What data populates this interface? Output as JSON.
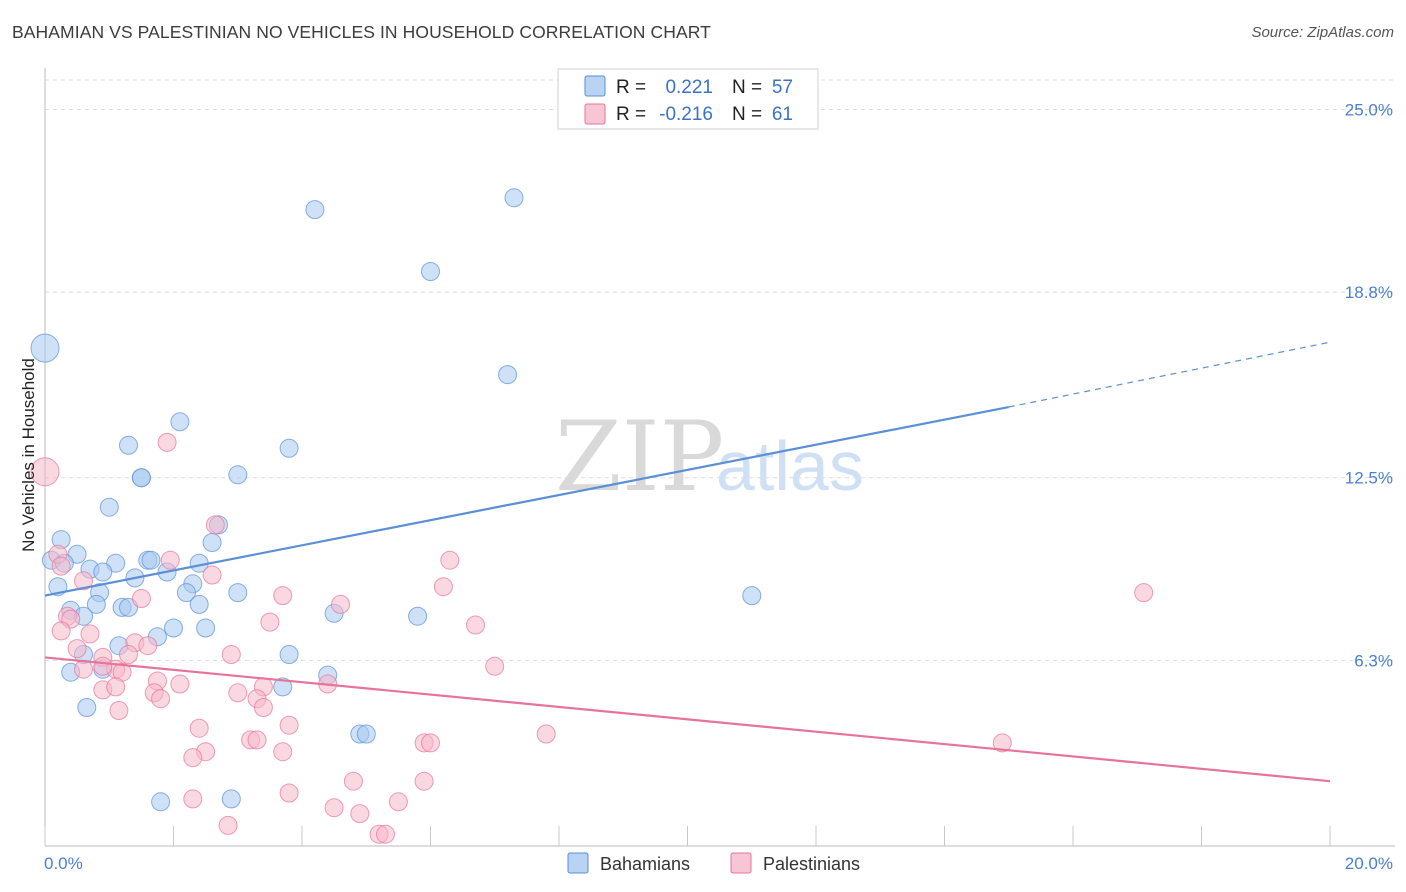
{
  "header": {
    "title": "BAHAMIAN VS PALESTINIAN NO VEHICLES IN HOUSEHOLD CORRELATION CHART",
    "source": "Source: ZipAtlas.com"
  },
  "watermark": {
    "zip": "ZIP",
    "atlas": "atlas"
  },
  "legend": {
    "r_label": "R =",
    "n_label": "N =",
    "rows": [
      {
        "r": "0.221",
        "n": "57",
        "color": "#a8c8f0"
      },
      {
        "r": "-0.216",
        "n": "61",
        "color": "#f5b8cb"
      }
    ]
  },
  "chart_data": {
    "type": "scatter",
    "ylabel": "No Vehicles in Household",
    "xlim": [
      0,
      20
    ],
    "ylim": [
      0,
      26
    ],
    "x_ticks": [
      "0.0%",
      "20.0%"
    ],
    "y_ticks": [
      {
        "value": 6.3,
        "label": "6.3%"
      },
      {
        "value": 12.5,
        "label": "12.5%"
      },
      {
        "value": 18.8,
        "label": "18.8%"
      },
      {
        "value": 25.0,
        "label": "25.0%"
      }
    ],
    "grid": "horizontal dashed",
    "series": [
      {
        "name": "Bahamians",
        "color": "#5b8fd6",
        "fill": "#a8c8f0",
        "trend": {
          "x0": 0,
          "y0": 8.5,
          "x1": 15.0,
          "y1": 14.9,
          "x_dash_end": 20,
          "y_dash_end": 17.1
        },
        "points": [
          [
            0.0,
            16.9,
            28
          ],
          [
            4.2,
            21.6,
            18
          ],
          [
            7.3,
            22.0,
            18
          ],
          [
            6.0,
            19.5,
            18
          ],
          [
            7.2,
            16.0,
            18
          ],
          [
            2.1,
            14.4,
            18
          ],
          [
            1.3,
            13.6,
            18
          ],
          [
            3.8,
            13.5,
            18
          ],
          [
            1.5,
            12.5,
            18
          ],
          [
            1.5,
            12.5,
            18
          ],
          [
            3.0,
            12.6,
            18
          ],
          [
            1.0,
            11.5,
            18
          ],
          [
            2.7,
            10.9,
            18
          ],
          [
            0.25,
            10.4,
            18
          ],
          [
            2.6,
            10.3,
            18
          ],
          [
            0.5,
            9.9,
            18
          ],
          [
            0.1,
            9.7,
            18
          ],
          [
            0.3,
            9.6,
            18
          ],
          [
            0.7,
            9.4,
            18
          ],
          [
            1.1,
            9.6,
            18
          ],
          [
            1.6,
            9.7,
            18
          ],
          [
            1.65,
            9.7,
            18
          ],
          [
            2.4,
            9.6,
            18
          ],
          [
            0.9,
            9.3,
            18
          ],
          [
            1.4,
            9.1,
            18
          ],
          [
            1.9,
            9.3,
            18
          ],
          [
            2.3,
            8.9,
            18
          ],
          [
            0.2,
            8.8,
            18
          ],
          [
            0.85,
            8.6,
            18
          ],
          [
            2.2,
            8.6,
            18
          ],
          [
            3.0,
            8.6,
            18
          ],
          [
            11.0,
            8.5,
            18
          ],
          [
            0.8,
            8.2,
            18
          ],
          [
            1.2,
            8.1,
            18
          ],
          [
            1.3,
            8.1,
            18
          ],
          [
            2.4,
            8.2,
            18
          ],
          [
            0.4,
            8.0,
            18
          ],
          [
            0.6,
            7.8,
            18
          ],
          [
            4.5,
            7.9,
            18
          ],
          [
            5.8,
            7.8,
            18
          ],
          [
            2.0,
            7.4,
            18
          ],
          [
            2.5,
            7.4,
            18
          ],
          [
            1.75,
            7.1,
            18
          ],
          [
            1.15,
            6.8,
            18
          ],
          [
            3.8,
            6.5,
            18
          ],
          [
            0.6,
            6.5,
            18
          ],
          [
            0.9,
            6.0,
            18
          ],
          [
            0.4,
            5.9,
            18
          ],
          [
            4.4,
            5.8,
            18
          ],
          [
            3.7,
            5.4,
            18
          ],
          [
            0.65,
            4.7,
            18
          ],
          [
            4.9,
            3.8,
            18
          ],
          [
            5.0,
            3.8,
            18
          ],
          [
            1.8,
            1.5,
            18
          ],
          [
            2.9,
            1.6,
            18
          ]
        ]
      },
      {
        "name": "Palestinians",
        "color": "#e8739a",
        "fill": "#f5b8cb",
        "trend": {
          "x0": 0,
          "y0": 6.4,
          "x1": 20,
          "y1": 2.2
        },
        "points": [
          [
            0.0,
            12.7,
            28
          ],
          [
            1.9,
            13.7,
            18
          ],
          [
            2.65,
            10.9,
            18
          ],
          [
            0.2,
            9.9,
            18
          ],
          [
            6.3,
            9.7,
            18
          ],
          [
            1.95,
            9.7,
            18
          ],
          [
            0.25,
            9.5,
            18
          ],
          [
            2.6,
            9.2,
            18
          ],
          [
            0.6,
            9.0,
            18
          ],
          [
            6.2,
            8.8,
            18
          ],
          [
            17.1,
            8.6,
            18
          ],
          [
            3.7,
            8.5,
            18
          ],
          [
            1.5,
            8.4,
            18
          ],
          [
            4.6,
            8.2,
            18
          ],
          [
            0.35,
            7.8,
            18
          ],
          [
            0.4,
            7.7,
            18
          ],
          [
            3.5,
            7.6,
            18
          ],
          [
            6.7,
            7.5,
            18
          ],
          [
            0.25,
            7.3,
            18
          ],
          [
            0.7,
            7.2,
            18
          ],
          [
            1.4,
            6.9,
            18
          ],
          [
            1.6,
            6.8,
            18
          ],
          [
            0.5,
            6.7,
            18
          ],
          [
            1.3,
            6.5,
            18
          ],
          [
            2.9,
            6.5,
            18
          ],
          [
            0.9,
            6.4,
            18
          ],
          [
            1.1,
            6.0,
            18
          ],
          [
            7.0,
            6.1,
            18
          ],
          [
            0.6,
            6.0,
            18
          ],
          [
            0.9,
            6.1,
            18
          ],
          [
            1.2,
            5.9,
            18
          ],
          [
            1.75,
            5.6,
            18
          ],
          [
            2.1,
            5.5,
            18
          ],
          [
            3.4,
            5.4,
            18
          ],
          [
            4.4,
            5.5,
            18
          ],
          [
            0.9,
            5.3,
            18
          ],
          [
            1.1,
            5.4,
            18
          ],
          [
            1.7,
            5.2,
            18
          ],
          [
            3.0,
            5.2,
            18
          ],
          [
            3.3,
            5.0,
            18
          ],
          [
            1.8,
            5.0,
            18
          ],
          [
            1.15,
            4.6,
            18
          ],
          [
            3.4,
            4.7,
            18
          ],
          [
            3.8,
            4.1,
            18
          ],
          [
            2.4,
            4.0,
            18
          ],
          [
            7.8,
            3.8,
            18
          ],
          [
            3.2,
            3.6,
            18
          ],
          [
            3.3,
            3.6,
            18
          ],
          [
            14.9,
            3.5,
            18
          ],
          [
            5.9,
            3.5,
            18
          ],
          [
            6.0,
            3.5,
            18
          ],
          [
            3.7,
            3.2,
            18
          ],
          [
            2.5,
            3.2,
            18
          ],
          [
            2.3,
            3.0,
            18
          ],
          [
            4.8,
            2.2,
            18
          ],
          [
            5.9,
            2.2,
            18
          ],
          [
            3.8,
            1.8,
            18
          ],
          [
            2.3,
            1.6,
            18
          ],
          [
            5.5,
            1.5,
            18
          ],
          [
            4.5,
            1.3,
            18
          ],
          [
            4.9,
            1.1,
            18
          ],
          [
            2.85,
            0.7,
            18
          ],
          [
            5.2,
            0.4,
            18
          ],
          [
            5.3,
            0.4,
            18
          ]
        ]
      }
    ]
  }
}
